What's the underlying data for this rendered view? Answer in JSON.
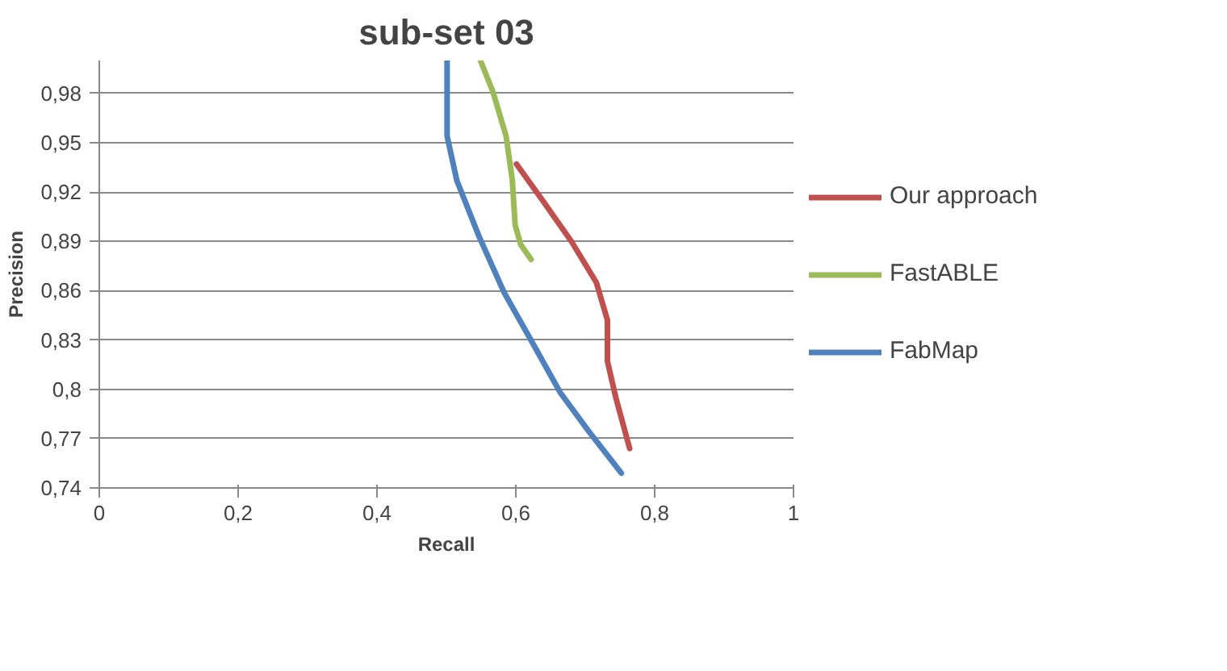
{
  "chart_data": {
    "type": "line",
    "title": "sub-set 03",
    "xlabel": "Recall",
    "ylabel": "Precision",
    "xlim": [
      0,
      1
    ],
    "ylim": [
      0.74,
      1.0
    ],
    "xticks": [
      0,
      {
        "value": 0.2,
        "label": "0,2"
      },
      {
        "value": 0.4,
        "label": "0,4"
      },
      {
        "value": 0.6,
        "label": "0,6"
      },
      {
        "value": 0.8,
        "label": "0,8"
      },
      1
    ],
    "yticks": [
      {
        "value": 0.74,
        "label": "0,74"
      },
      {
        "value": 0.77,
        "label": "0,77"
      },
      {
        "value": 0.8,
        "label": "0,8"
      },
      {
        "value": 0.83,
        "label": "0,83"
      },
      {
        "value": 0.86,
        "label": "0,86"
      },
      {
        "value": 0.89,
        "label": "0,89"
      },
      {
        "value": 0.92,
        "label": "0,92"
      },
      {
        "value": 0.95,
        "label": "0,95"
      },
      {
        "value": 0.98,
        "label": "0,98"
      }
    ],
    "grid": "y",
    "legend": "right",
    "marker": "none",
    "line_style": "solid",
    "series": [
      {
        "name": "Our approach",
        "color": "#c0504d",
        "x": [
          0.601,
          0.64,
          0.68,
          0.716,
          0.732,
          0.732,
          0.744,
          0.764
        ],
        "values": [
          0.937,
          0.914,
          0.89,
          0.865,
          0.842,
          0.817,
          0.795,
          0.764
        ]
      },
      {
        "name": "FastABLE",
        "color": "#9bbb59",
        "x": [
          0.549,
          0.567,
          0.586,
          0.595,
          0.599,
          0.607,
          0.622
        ],
        "values": [
          1.0,
          0.981,
          0.954,
          0.927,
          0.9,
          0.888,
          0.879
        ]
      },
      {
        "name": "FabMap",
        "color": "#4f81bd",
        "x": [
          0.501,
          0.501,
          0.515,
          0.547,
          0.583,
          0.623,
          0.664,
          0.704,
          0.752
        ],
        "values": [
          1.0,
          0.954,
          0.927,
          0.893,
          0.859,
          0.829,
          0.798,
          0.775,
          0.749
        ]
      }
    ]
  }
}
